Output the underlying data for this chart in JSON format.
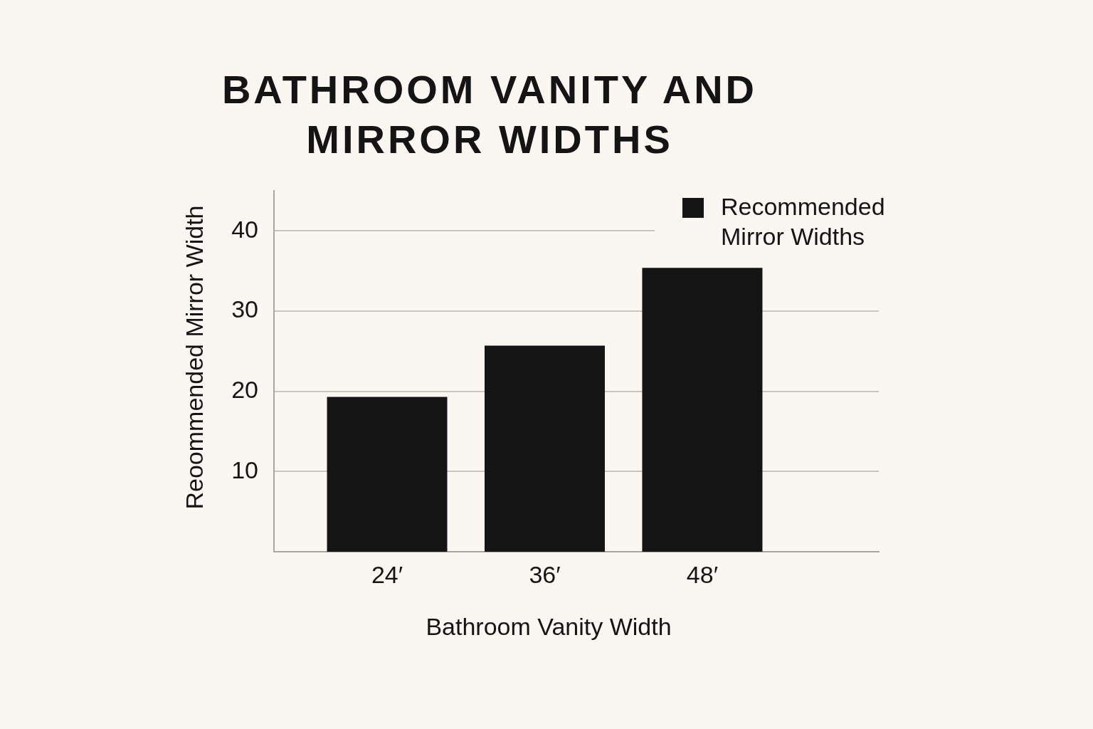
{
  "chart_data": {
    "type": "bar",
    "title": "BATHROOM VANITY AND MIRROR WIDTHS",
    "xlabel": "Bathroom Vanity Width",
    "ylabel": "Reoommended Mirror Width",
    "categories": [
      "24′",
      "36′",
      "48′"
    ],
    "series": [
      {
        "name": "Recommended Mirror Widths",
        "color": "#141414",
        "values": [
          19.3,
          25.7,
          35.4
        ]
      }
    ],
    "ylim": [
      0,
      45
    ],
    "yticks": [
      10,
      20,
      30,
      40
    ],
    "grid": "y",
    "legend": "top right"
  }
}
